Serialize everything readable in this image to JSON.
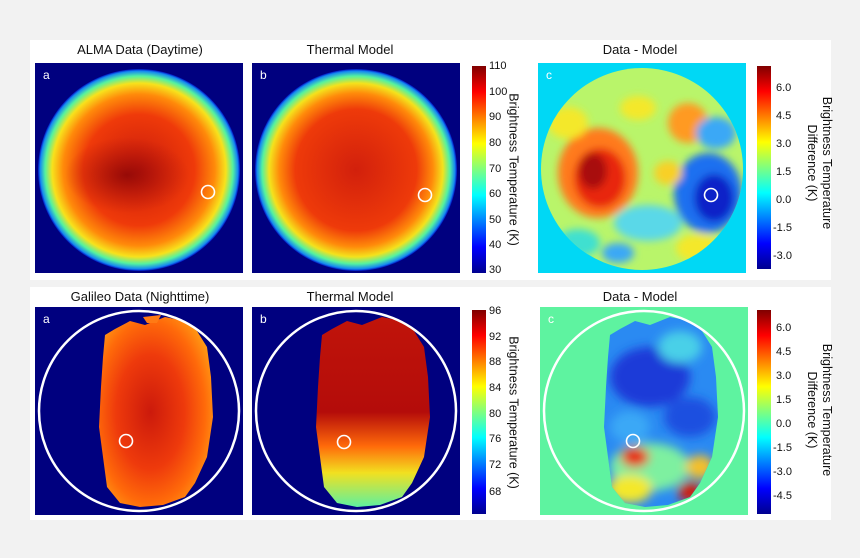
{
  "row1": {
    "titles": [
      "ALMA Data (Daytime)",
      "Thermal Model",
      "Data - Model"
    ],
    "panel_labels": [
      "a",
      "b",
      "c"
    ],
    "colorbar1": {
      "ticks": [
        "110",
        "100",
        "90",
        "80",
        "70",
        "60",
        "50",
        "40",
        "30"
      ],
      "label": "Brightness Temperature (K)"
    },
    "colorbar2": {
      "ticks": [
        "6.0",
        "4.5",
        "3.0",
        "1.5",
        "0.0",
        "-1.5",
        "-3.0"
      ],
      "label_line1": "Brightness Temperature",
      "label_line2": "Difference (K)"
    }
  },
  "row2": {
    "titles": [
      "Galileo Data (Nighttime)",
      "Thermal Model",
      "Data - Model"
    ],
    "panel_labels": [
      "a",
      "b",
      "c"
    ],
    "colorbar1": {
      "ticks": [
        "96",
        "92",
        "88",
        "84",
        "80",
        "76",
        "72",
        "68"
      ],
      "label": "Brightness Temperature (K)"
    },
    "colorbar2": {
      "ticks": [
        "6.0",
        "4.5",
        "3.0",
        "1.5",
        "0.0",
        "-1.5",
        "-3.0",
        "-4.5"
      ],
      "label_line1": "Brightness Temperature",
      "label_line2": "Difference (K)"
    }
  },
  "colors": {
    "jet_dark_blue": "#00007f",
    "jet_cyan": "#00d8f5",
    "jet_green": "#5ef3a0",
    "jet_red": "#e41a0c",
    "marker": "#ffffff"
  }
}
